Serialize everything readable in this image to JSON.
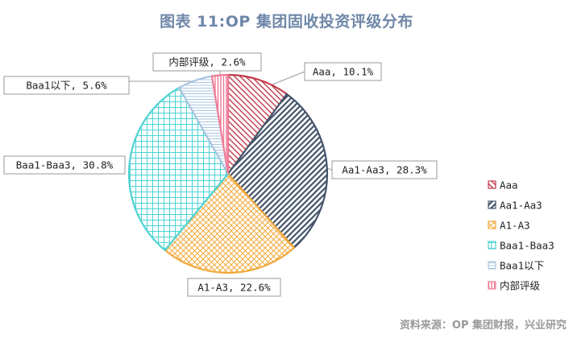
{
  "title": "图表 11:OP 集团固收投资评级分布",
  "source": "资料来源：OP 集团财报，兴业研究",
  "chart_data": {
    "type": "pie",
    "title": "图表 11:OP 集团固收投资评级分布",
    "legend_position": "right",
    "slices": [
      {
        "name": "Aaa",
        "value": 10.1,
        "label": "Aaa, 10.1%",
        "color": "#c0394a",
        "pattern": "diag-down"
      },
      {
        "name": "Aa1-Aa3",
        "value": 28.3,
        "label": "Aa1-Aa3, 28.3%",
        "color": "#44546a",
        "pattern": "diag-up"
      },
      {
        "name": "A1-A3",
        "value": 22.6,
        "label": "A1-A3, 22.6%",
        "color": "#f2a93b",
        "pattern": "diag-cross"
      },
      {
        "name": "Baa1-Baa3",
        "value": 30.8,
        "label": "Baa1-Baa3, 30.8%",
        "color": "#4fd3d3",
        "pattern": "grid"
      },
      {
        "name": "Baa1以下",
        "value": 5.6,
        "label": "Baa1以下, 5.6%",
        "color": "#a9c4e0",
        "pattern": "horizontal"
      },
      {
        "name": "内部评级",
        "value": 2.6,
        "label": "内部评级, 2.6%",
        "color": "#f07b97",
        "pattern": "vertical"
      }
    ]
  }
}
